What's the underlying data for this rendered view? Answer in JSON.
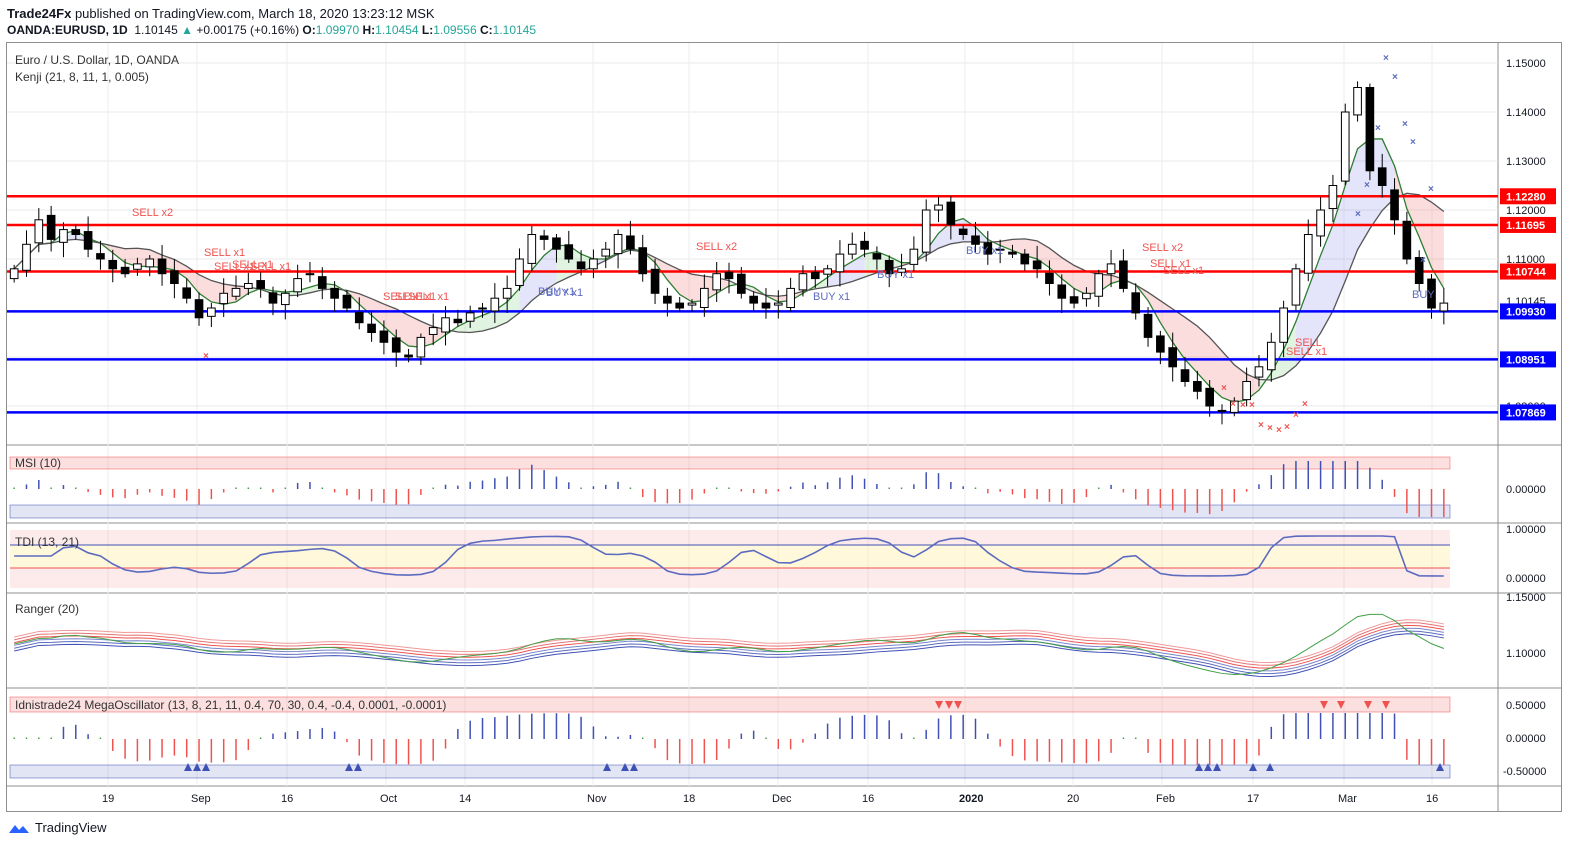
{
  "header": {
    "publisher": "Trade24Fx",
    "published_text": "published on TradingView.com, March 18, 2020 13:23:12 MSK",
    "symbol": "OANDA:EURUSD, 1D",
    "last": "1.10145",
    "change": "+0.00175 (+0.16%)",
    "o_label": "O:",
    "o_val": "1.09970",
    "h_label": "H:",
    "h_val": "1.10454",
    "l_label": "L:",
    "l_val": "1.09556",
    "c_label": "C:",
    "c_val": "1.10145"
  },
  "main_pane": {
    "title": "Euro / U.S. Dollar, 1D, OANDA",
    "indicator": "Kenji (21, 8, 11, 1, 0.005)"
  },
  "panes": {
    "msi": "MSI (10)",
    "tdi": "TDI (13, 21)",
    "ranger": "Ranger (20)",
    "mega": "Idnistrade24 MegaOscillator (13, 8, 21, 11, 0.4, 70, 30, 0.4, -0.4, 0.0001, -0.0001)"
  },
  "price_axis": {
    "ticks": [
      "1.15000",
      "1.14000",
      "1.13000",
      "1.12000",
      "1.11000",
      "1.10145",
      "1.09000",
      "1.08000"
    ],
    "red_levels": [
      "1.12280",
      "1.11695",
      "1.10744"
    ],
    "blue_levels": [
      "1.09930",
      "1.08951",
      "1.07869"
    ]
  },
  "msi_axis": [
    "0.00000"
  ],
  "tdi_axis": [
    "1.00000",
    "0.00000"
  ],
  "ranger_axis": [
    "1.15000",
    "1.10000"
  ],
  "mega_axis": [
    "0.50000",
    "0.00000",
    "-0.50000"
  ],
  "time_axis": [
    "19",
    "Sep",
    "16",
    "Oct",
    "14",
    "Nov",
    "18",
    "Dec",
    "16",
    "2020",
    "20",
    "Feb",
    "17",
    "Mar",
    "16"
  ],
  "signals": {
    "sell_x2": "SELL x2",
    "sell_x1": "SELL x1",
    "buy_x1": "BUY x1",
    "sell": "SELL",
    "buy": "BUY"
  },
  "colors": {
    "up_candle": "#ffffff",
    "down_candle": "#000000",
    "resistance": "#ff0000",
    "support": "#0000ff",
    "sell_signal": "#ef5350",
    "buy_signal": "#5c6bc0"
  },
  "chart_data": {
    "type": "candlestick",
    "instrument": "EURUSD",
    "timeframe": "1D",
    "range": "Aug 2019 – Mar 18 2020",
    "ylim": [
      1.0765,
      1.152
    ],
    "close_path_approx": [
      1.108,
      1.113,
      1.118,
      1.114,
      1.116,
      1.115,
      1.112,
      1.11,
      1.108,
      1.107,
      1.109,
      1.11,
      1.107,
      1.105,
      1.102,
      1.098,
      1.1,
      1.103,
      1.104,
      1.105,
      1.104,
      1.101,
      1.103,
      1.106,
      1.107,
      1.104,
      1.102,
      1.1,
      1.097,
      1.095,
      1.093,
      1.091,
      1.09,
      1.094,
      1.096,
      1.098,
      1.097,
      1.099,
      1.1,
      1.102,
      1.104,
      1.11,
      1.115,
      1.114,
      1.112,
      1.11,
      1.108,
      1.11,
      1.112,
      1.115,
      1.112,
      1.107,
      1.103,
      1.101,
      1.1,
      1.101,
      1.104,
      1.107,
      1.106,
      1.103,
      1.101,
      1.1,
      1.101,
      1.104,
      1.107,
      1.106,
      1.108,
      1.111,
      1.113,
      1.112,
      1.11,
      1.107,
      1.108,
      1.112,
      1.12,
      1.121,
      1.117,
      1.115,
      1.113,
      1.111,
      1.112,
      1.111,
      1.109,
      1.108,
      1.105,
      1.102,
      1.101,
      1.103,
      1.107,
      1.109,
      1.104,
      1.099,
      1.094,
      1.091,
      1.088,
      1.085,
      1.083,
      1.08,
      1.079,
      1.081,
      1.085,
      1.088,
      1.093,
      1.1,
      1.108,
      1.115,
      1.12,
      1.125,
      1.14,
      1.145,
      1.128,
      1.125,
      1.118,
      1.11,
      1.105,
      1.1,
      1.101
    ]
  }
}
